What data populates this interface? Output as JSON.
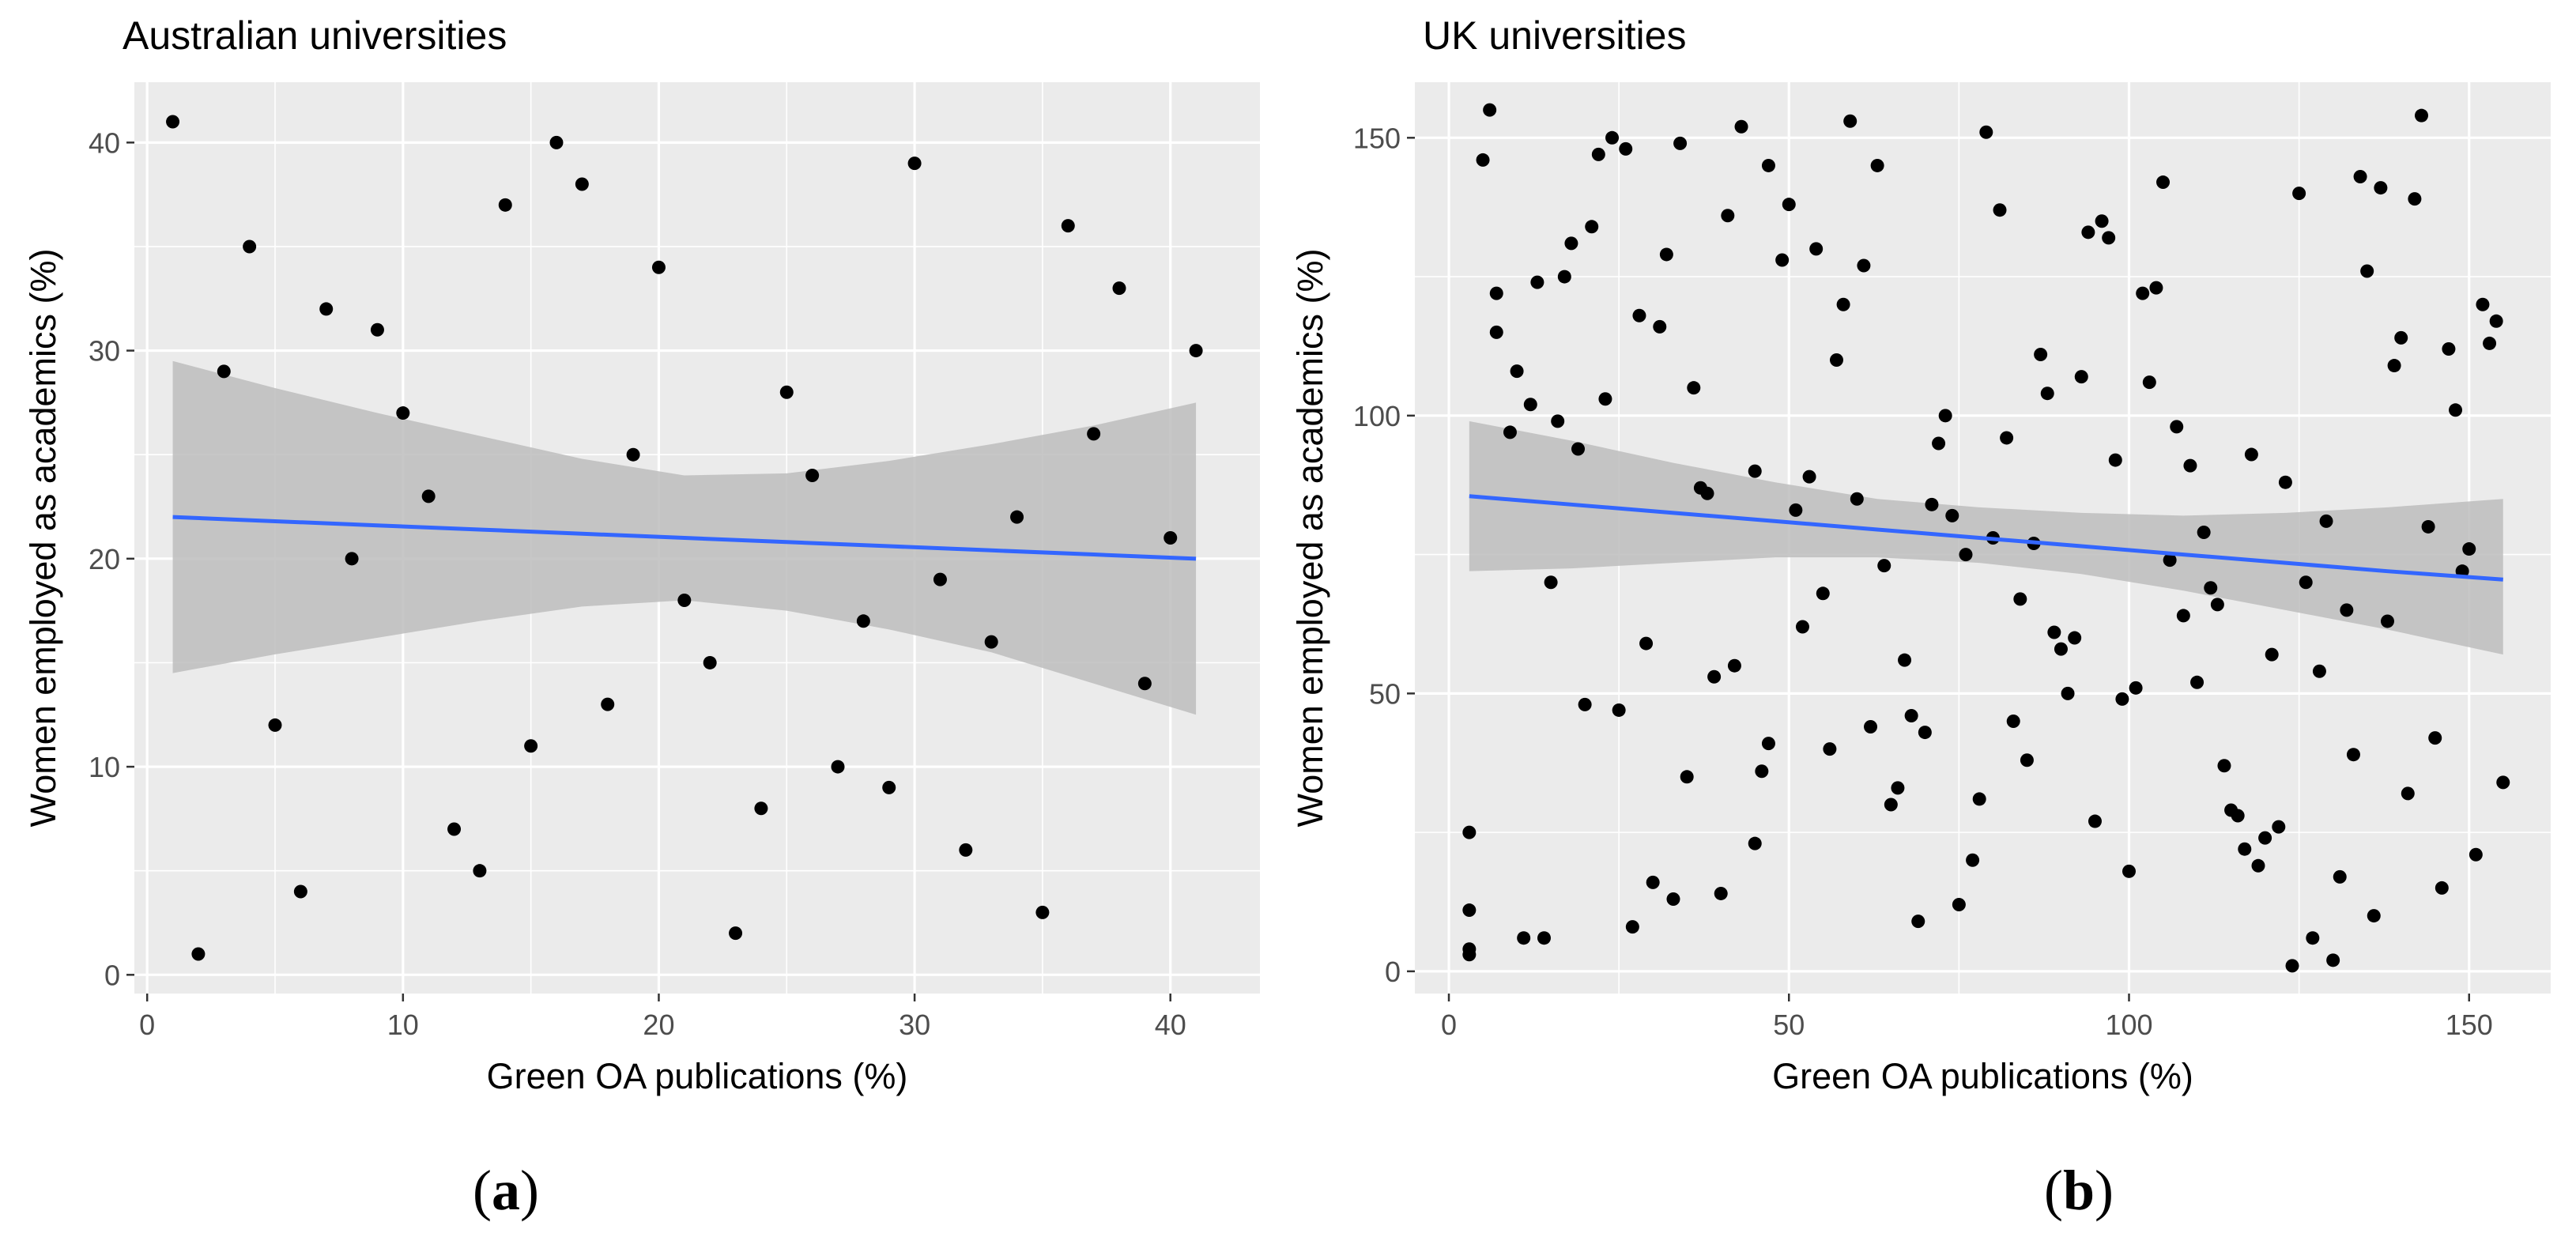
{
  "figure": {
    "panel_labels": [
      "a",
      "b"
    ]
  },
  "colors": {
    "panel_background": "#ebebeb",
    "grid_major": "#ffffff",
    "point": "#000000",
    "trend_line": "#3366ff",
    "confidence_band": "#bdbdbd",
    "tick_text": "#4d4d4d"
  },
  "chart_data": [
    {
      "type": "scatter",
      "title": "Australian universities",
      "xlabel": "Green OA publications (%)",
      "ylabel": "Women employed as academics (%)",
      "xlim": [
        -0.5,
        43.5
      ],
      "ylim": [
        -0.9,
        42.9
      ],
      "xticks": [
        0,
        10,
        20,
        30,
        40
      ],
      "yticks": [
        0,
        10,
        20,
        30,
        40
      ],
      "grid": true,
      "legend": "none",
      "points": [
        [
          1,
          41
        ],
        [
          2,
          1
        ],
        [
          3,
          29
        ],
        [
          4,
          35
        ],
        [
          5,
          12
        ],
        [
          6,
          4
        ],
        [
          7,
          32
        ],
        [
          8,
          20
        ],
        [
          9,
          31
        ],
        [
          10,
          27
        ],
        [
          11,
          23
        ],
        [
          12,
          7
        ],
        [
          13,
          5
        ],
        [
          14,
          37
        ],
        [
          15,
          11
        ],
        [
          16,
          40
        ],
        [
          17,
          38
        ],
        [
          18,
          13
        ],
        [
          19,
          25
        ],
        [
          20,
          34
        ],
        [
          21,
          18
        ],
        [
          22,
          15
        ],
        [
          23,
          2
        ],
        [
          24,
          8
        ],
        [
          25,
          28
        ],
        [
          26,
          24
        ],
        [
          27,
          10
        ],
        [
          28,
          17
        ],
        [
          29,
          9
        ],
        [
          30,
          39
        ],
        [
          31,
          19
        ],
        [
          32,
          6
        ],
        [
          33,
          16
        ],
        [
          34,
          22
        ],
        [
          35,
          3
        ],
        [
          36,
          36
        ],
        [
          37,
          26
        ],
        [
          38,
          33
        ],
        [
          39,
          14
        ],
        [
          40,
          21
        ],
        [
          41,
          30
        ]
      ],
      "trend": {
        "x": [
          1,
          5,
          9,
          13,
          17,
          21,
          25,
          29,
          33,
          37,
          41
        ],
        "fit": [
          22.0,
          21.8,
          21.6,
          21.4,
          21.2,
          21.0,
          20.8,
          20.6,
          20.4,
          20.2,
          20.0
        ],
        "lower": [
          14.5,
          15.4,
          16.2,
          17.0,
          17.7,
          18.0,
          17.5,
          16.6,
          15.5,
          14.0,
          12.5
        ],
        "upper": [
          29.5,
          28.2,
          27.0,
          25.9,
          24.8,
          24.0,
          24.1,
          24.7,
          25.5,
          26.4,
          27.5
        ]
      }
    },
    {
      "type": "scatter",
      "title": "UK universities",
      "xlabel": "Green OA publications (%)",
      "ylabel": "Women employed as academics (%)",
      "xlim": [
        -5,
        162
      ],
      "ylim": [
        -4,
        160
      ],
      "xticks": [
        0,
        50,
        100,
        150
      ],
      "yticks": [
        0,
        50,
        100,
        150
      ],
      "grid": true,
      "legend": "none",
      "points": [
        [
          3,
          25
        ],
        [
          3,
          11
        ],
        [
          3,
          4
        ],
        [
          3,
          3
        ],
        [
          5,
          146
        ],
        [
          6,
          155
        ],
        [
          7,
          122
        ],
        [
          7,
          115
        ],
        [
          9,
          97
        ],
        [
          10,
          108
        ],
        [
          11,
          6
        ],
        [
          12,
          102
        ],
        [
          13,
          124
        ],
        [
          14,
          6
        ],
        [
          15,
          70
        ],
        [
          16,
          99
        ],
        [
          17,
          125
        ],
        [
          18,
          131
        ],
        [
          19,
          94
        ],
        [
          20,
          48
        ],
        [
          21,
          134
        ],
        [
          22,
          147
        ],
        [
          23,
          103
        ],
        [
          24,
          150
        ],
        [
          25,
          47
        ],
        [
          26,
          148
        ],
        [
          27,
          8
        ],
        [
          28,
          118
        ],
        [
          29,
          59
        ],
        [
          30,
          16
        ],
        [
          31,
          116
        ],
        [
          32,
          129
        ],
        [
          33,
          13
        ],
        [
          34,
          149
        ],
        [
          35,
          35
        ],
        [
          36,
          105
        ],
        [
          37,
          87
        ],
        [
          38,
          86
        ],
        [
          39,
          53
        ],
        [
          40,
          14
        ],
        [
          41,
          136
        ],
        [
          42,
          55
        ],
        [
          43,
          152
        ],
        [
          45,
          23
        ],
        [
          45,
          90
        ],
        [
          46,
          36
        ],
        [
          47,
          41
        ],
        [
          47,
          145
        ],
        [
          49,
          128
        ],
        [
          50,
          138
        ],
        [
          51,
          83
        ],
        [
          52,
          62
        ],
        [
          53,
          89
        ],
        [
          54,
          130
        ],
        [
          55,
          68
        ],
        [
          56,
          40
        ],
        [
          57,
          110
        ],
        [
          58,
          120
        ],
        [
          59,
          153
        ],
        [
          60,
          85
        ],
        [
          61,
          127
        ],
        [
          62,
          44
        ],
        [
          63,
          145
        ],
        [
          64,
          73
        ],
        [
          65,
          30
        ],
        [
          66,
          33
        ],
        [
          67,
          56
        ],
        [
          68,
          46
        ],
        [
          69,
          9
        ],
        [
          70,
          43
        ],
        [
          71,
          84
        ],
        [
          72,
          95
        ],
        [
          73,
          100
        ],
        [
          74,
          82
        ],
        [
          75,
          12
        ],
        [
          76,
          75
        ],
        [
          77,
          20
        ],
        [
          78,
          31
        ],
        [
          79,
          151
        ],
        [
          80,
          78
        ],
        [
          81,
          137
        ],
        [
          82,
          96
        ],
        [
          83,
          45
        ],
        [
          84,
          67
        ],
        [
          85,
          38
        ],
        [
          86,
          77
        ],
        [
          87,
          111
        ],
        [
          88,
          104
        ],
        [
          89,
          61
        ],
        [
          90,
          58
        ],
        [
          91,
          50
        ],
        [
          92,
          60
        ],
        [
          93,
          107
        ],
        [
          94,
          133
        ],
        [
          95,
          27
        ],
        [
          96,
          135
        ],
        [
          97,
          132
        ],
        [
          98,
          92
        ],
        [
          99,
          49
        ],
        [
          100,
          18
        ],
        [
          101,
          51
        ],
        [
          102,
          122
        ],
        [
          103,
          106
        ],
        [
          104,
          123
        ],
        [
          105,
          142
        ],
        [
          106,
          74
        ],
        [
          107,
          98
        ],
        [
          108,
          64
        ],
        [
          109,
          91
        ],
        [
          110,
          52
        ],
        [
          111,
          79
        ],
        [
          112,
          69
        ],
        [
          113,
          66
        ],
        [
          114,
          37
        ],
        [
          115,
          29
        ],
        [
          116,
          28
        ],
        [
          117,
          22
        ],
        [
          118,
          93
        ],
        [
          119,
          19
        ],
        [
          120,
          24
        ],
        [
          121,
          57
        ],
        [
          122,
          26
        ],
        [
          123,
          88
        ],
        [
          124,
          1
        ],
        [
          125,
          140
        ],
        [
          126,
          70
        ],
        [
          127,
          6
        ],
        [
          128,
          54
        ],
        [
          129,
          81
        ],
        [
          130,
          2
        ],
        [
          131,
          17
        ],
        [
          132,
          65
        ],
        [
          133,
          39
        ],
        [
          134,
          143
        ],
        [
          135,
          126
        ],
        [
          136,
          10
        ],
        [
          137,
          141
        ],
        [
          138,
          63
        ],
        [
          139,
          109
        ],
        [
          140,
          114
        ],
        [
          141,
          32
        ],
        [
          142,
          139
        ],
        [
          143,
          154
        ],
        [
          144,
          80
        ],
        [
          145,
          42
        ],
        [
          146,
          15
        ],
        [
          147,
          112
        ],
        [
          148,
          101
        ],
        [
          149,
          72
        ],
        [
          150,
          76
        ],
        [
          151,
          21
        ],
        [
          152,
          120
        ],
        [
          153,
          113
        ],
        [
          154,
          117
        ],
        [
          155,
          34
        ]
      ],
      "trend": {
        "x": [
          3,
          18,
          33,
          48,
          63,
          78,
          93,
          108,
          123,
          138,
          155
        ],
        "fit": [
          85.5,
          84.0,
          82.5,
          81.0,
          79.5,
          78.0,
          76.5,
          75.0,
          73.5,
          72.0,
          70.5
        ],
        "lower": [
          72.0,
          72.5,
          73.5,
          74.5,
          74.5,
          73.5,
          71.5,
          68.5,
          65.0,
          61.5,
          57.0
        ],
        "upper": [
          99.0,
          95.5,
          91.5,
          88.0,
          85.0,
          83.5,
          82.5,
          82.0,
          82.5,
          83.5,
          85.0
        ]
      }
    }
  ]
}
